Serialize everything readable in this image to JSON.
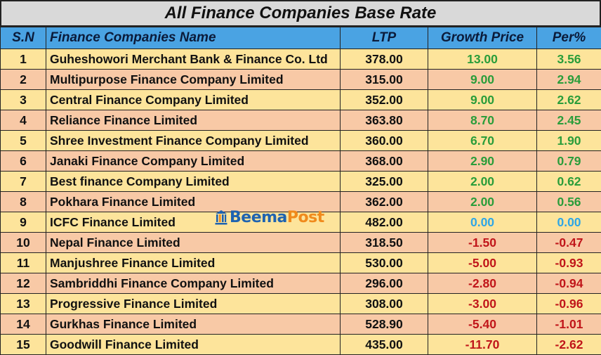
{
  "title": "All Finance Companies Base Rate",
  "columns": {
    "sn": "S.N",
    "name": "Finance Companies Name",
    "ltp": "LTP",
    "growth": "Growth Price",
    "per": "Per%"
  },
  "rows": [
    {
      "sn": "1",
      "name": "Guheshowori Merchant Bank & Finance Co. Ltd",
      "ltp": "378.00",
      "growth": "13.00",
      "per": "3.56",
      "trend": "pos"
    },
    {
      "sn": "2",
      "name": "Multipurpose Finance Company Limited",
      "ltp": "315.00",
      "growth": "9.00",
      "per": "2.94",
      "trend": "pos"
    },
    {
      "sn": "3",
      "name": "Central Finance Company Limited",
      "ltp": "352.00",
      "growth": "9.00",
      "per": "2.62",
      "trend": "pos"
    },
    {
      "sn": "4",
      "name": "Reliance Finance Limited",
      "ltp": "363.80",
      "growth": "8.70",
      "per": "2.45",
      "trend": "pos"
    },
    {
      "sn": "5",
      "name": "Shree Investment Finance Company Limited",
      "ltp": "360.00",
      "growth": "6.70",
      "per": "1.90",
      "trend": "pos"
    },
    {
      "sn": "6",
      "name": "Janaki Finance Company Limited",
      "ltp": "368.00",
      "growth": "2.90",
      "per": "0.79",
      "trend": "pos"
    },
    {
      "sn": "7",
      "name": "Best finance Company Limited",
      "ltp": "325.00",
      "growth": "2.00",
      "per": "0.62",
      "trend": "pos"
    },
    {
      "sn": "8",
      "name": "Pokhara Finance Limited",
      "ltp": "362.00",
      "growth": "2.00",
      "per": "0.56",
      "trend": "pos"
    },
    {
      "sn": "9",
      "name": "ICFC Finance Limited",
      "ltp": "482.00",
      "growth": "0.00",
      "per": "0.00",
      "trend": "zero"
    },
    {
      "sn": "10",
      "name": "Nepal Finance Limited",
      "ltp": "318.50",
      "growth": "-1.50",
      "per": "-0.47",
      "trend": "neg"
    },
    {
      "sn": "11",
      "name": "Manjushree Finance Limited",
      "ltp": "530.00",
      "growth": "-5.00",
      "per": "-0.93",
      "trend": "neg"
    },
    {
      "sn": "12",
      "name": "Sambriddhi Finance Company Limited",
      "ltp": "296.00",
      "growth": "-2.80",
      "per": "-0.94",
      "trend": "neg"
    },
    {
      "sn": "13",
      "name": "Progressive Finance Limited",
      "ltp": "308.00",
      "growth": "-3.00",
      "per": "-0.96",
      "trend": "neg"
    },
    {
      "sn": "14",
      "name": "Gurkhas Finance Limited",
      "ltp": "528.90",
      "growth": "-5.40",
      "per": "-1.01",
      "trend": "neg"
    },
    {
      "sn": "15",
      "name": "Goodwill Finance Limited",
      "ltp": "435.00",
      "growth": "-11.70",
      "per": "-2.62",
      "trend": "neg"
    }
  ],
  "watermark": {
    "part1": "Beema",
    "part2": "Post"
  },
  "colors": {
    "header_bg": "#4aa3e3",
    "title_bg": "#d9d9d9",
    "row_odd": "#fde49b",
    "row_even": "#f8c9a6",
    "positive": "#2a9d3a",
    "zero": "#2ea6e6",
    "negative": "#c0151a"
  }
}
